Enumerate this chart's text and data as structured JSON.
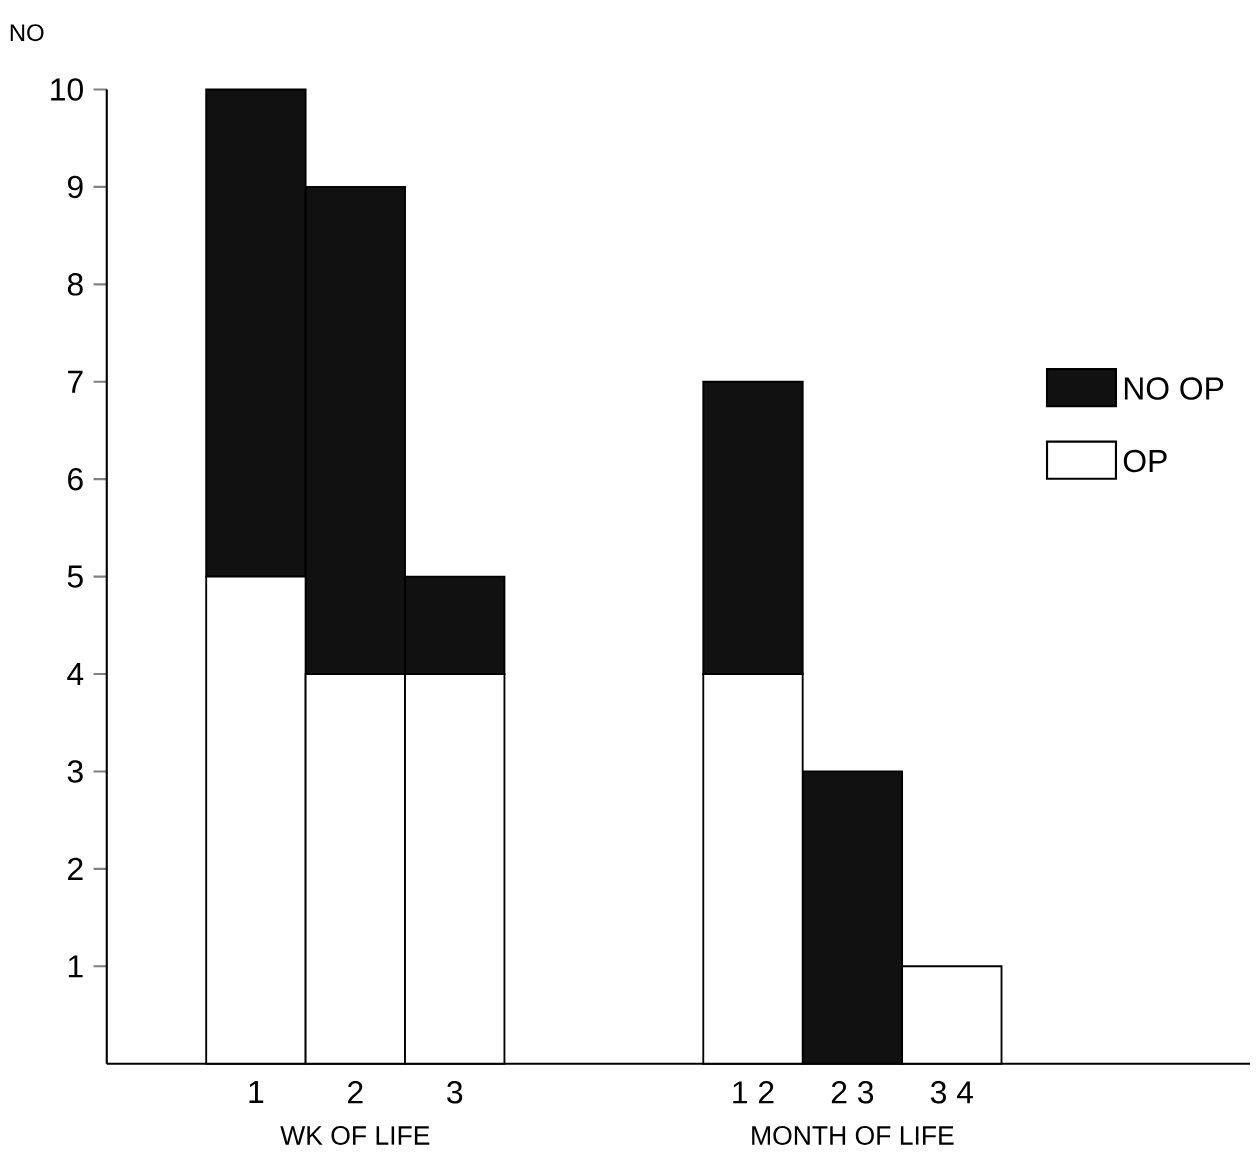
{
  "chart_data": {
    "type": "bar",
    "stacked": true,
    "ylabel": "NO",
    "categories": [
      "1",
      "2",
      "3",
      null,
      null,
      "1 2",
      "2 3",
      "3 4"
    ],
    "series": [
      {
        "name": "OP",
        "color": "#ffffff",
        "values": [
          5,
          4,
          4,
          null,
          null,
          4,
          0,
          1
        ]
      },
      {
        "name": "NO OP",
        "color": "#111111",
        "values": [
          5,
          5,
          1,
          null,
          null,
          3,
          3,
          0
        ]
      }
    ],
    "annotations": [
      "WK OF LIFE",
      "MONTH OF LIFE"
    ],
    "ylim": [
      0,
      10
    ],
    "yticks": [
      1,
      2,
      3,
      4,
      5,
      6,
      7,
      8,
      9,
      10
    ],
    "legend": "right",
    "grid": false
  }
}
